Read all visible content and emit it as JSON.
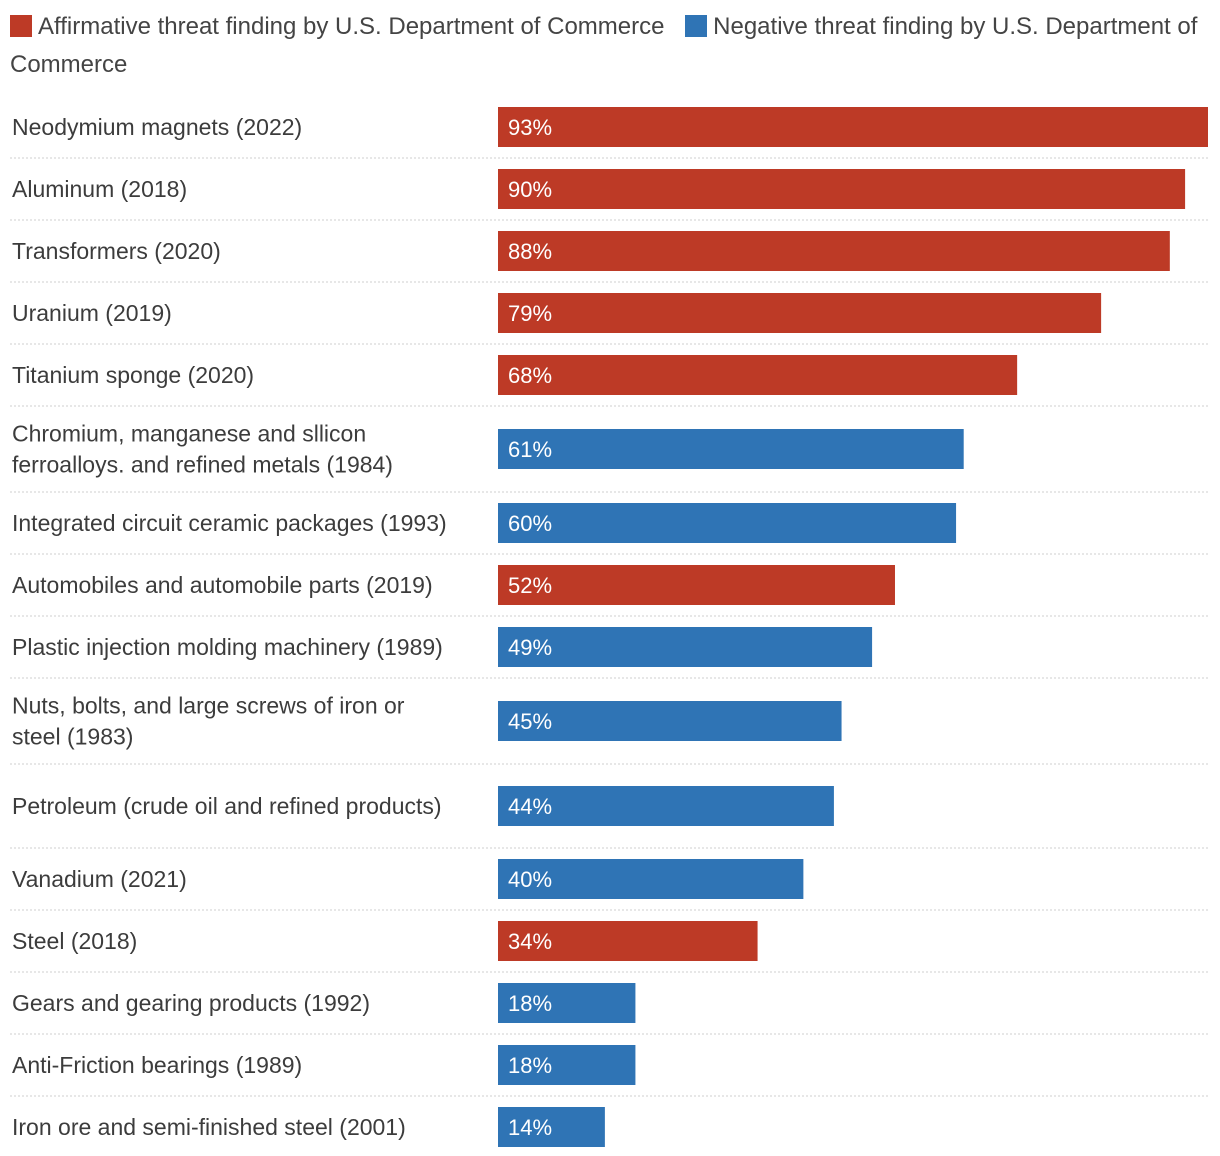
{
  "chart_data": {
    "type": "bar",
    "orientation": "horizontal",
    "title": "",
    "xlabel": "",
    "ylabel": "",
    "xlim": [
      0,
      93
    ],
    "grid": false,
    "legend_position": "top-left",
    "series_legend": [
      {
        "key": "affirmative",
        "name": "Affirmative threat finding by U.S. Department of Commerce",
        "color": "#bd3a26"
      },
      {
        "key": "negative",
        "name": "Negative threat finding by U.S. Department of Commerce",
        "color": "#2f74b5"
      }
    ],
    "categories": [
      "Neodymium magnets (2022)",
      "Aluminum (2018)",
      "Transformers (2020)",
      "Uranium (2019)",
      "Titanium sponge (2020)",
      "Chromium, manganese and sllicon ferroalloys. and refined metals (1984)",
      "Integrated circuit ceramic packages (1993)",
      "Automobiles and automobile parts (2019)",
      "Plastic injection molding machinery (1989)",
      "Nuts, bolts, and large screws of iron or steel (1983)",
      "Petroleum (crude oil and refined products)",
      "Vanadium (2021)",
      "Steel (2018)",
      "Gears and gearing products (1992)",
      "Anti-Friction bearings (1989)",
      "Iron ore and semi-finished steel (2001)"
    ],
    "values": [
      93,
      90,
      88,
      79,
      68,
      61,
      60,
      52,
      49,
      45,
      44,
      40,
      34,
      18,
      18,
      14
    ],
    "value_labels": [
      "93%",
      "90%",
      "88%",
      "79%",
      "68%",
      "61%",
      "60%",
      "52%",
      "49%",
      "45%",
      "44%",
      "40%",
      "34%",
      "18%",
      "18%",
      "14%"
    ],
    "finding": [
      "affirmative",
      "affirmative",
      "affirmative",
      "affirmative",
      "affirmative",
      "negative",
      "negative",
      "affirmative",
      "negative",
      "negative",
      "negative",
      "negative",
      "affirmative",
      "negative",
      "negative",
      "negative"
    ]
  }
}
